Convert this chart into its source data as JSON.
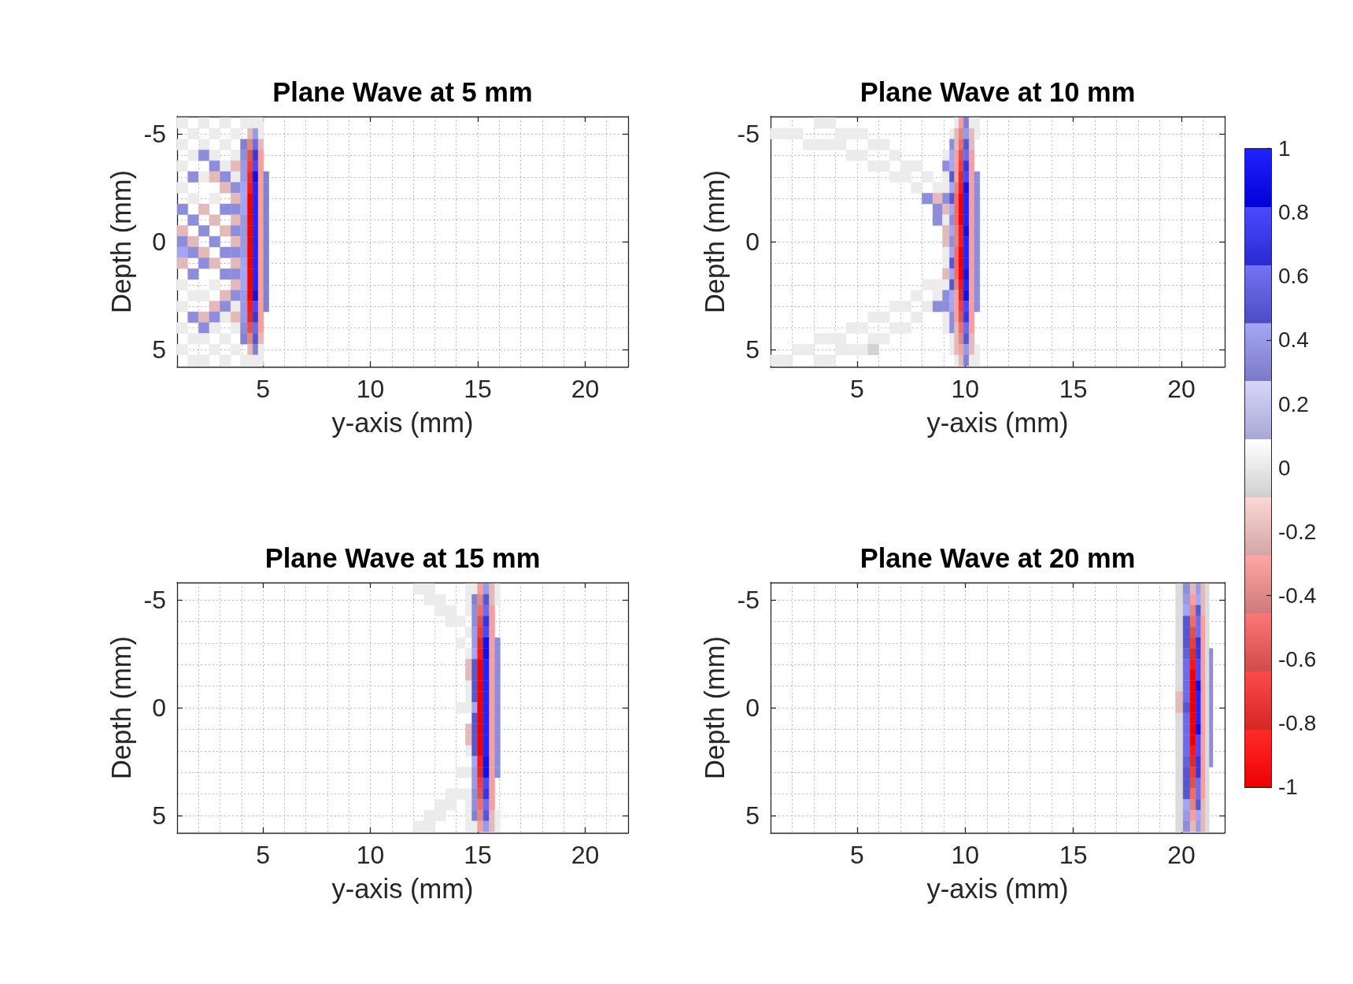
{
  "chart_data": [
    {
      "type": "heatmap",
      "title": "Plane Wave at 5 mm",
      "xlabel": "y-axis (mm)",
      "ylabel": "Depth (mm)",
      "x": [
        1.25,
        1.75,
        2.25,
        2.75,
        3.25,
        3.75,
        4.15,
        4.4,
        4.65,
        4.9,
        5.15
      ],
      "y": [
        -5.5,
        -5,
        -4.5,
        -4,
        -3.5,
        -3,
        -2.5,
        -2,
        -1.5,
        -1,
        -0.5,
        0,
        0.5,
        1,
        1.5,
        2,
        2.5,
        3,
        3.5,
        4,
        4.5,
        5,
        5.5
      ],
      "cells": [
        [
          0.02,
          null,
          0.02,
          null,
          0.02,
          null,
          0.02,
          0.02,
          0.02,
          0.02,
          null
        ],
        [
          null,
          0.02,
          null,
          0.02,
          null,
          0.02,
          null,
          -0.2,
          0.4,
          0.02,
          null
        ],
        [
          0.02,
          null,
          0.02,
          null,
          0.02,
          null,
          0.3,
          -0.4,
          0.6,
          -0.2,
          null
        ],
        [
          null,
          0.02,
          0.35,
          0.02,
          null,
          0.02,
          0.35,
          -0.6,
          0.7,
          -0.3,
          null
        ],
        [
          0.02,
          null,
          null,
          0.35,
          0.02,
          -0.2,
          0.4,
          -0.7,
          0.8,
          -0.3,
          null
        ],
        [
          null,
          0.35,
          0.02,
          -0.2,
          0.35,
          0.02,
          0.4,
          -0.8,
          0.9,
          -0.3,
          0.3
        ],
        [
          0.02,
          null,
          null,
          null,
          -0.2,
          0.35,
          0.45,
          -0.9,
          1,
          -0.3,
          0.3
        ],
        [
          null,
          0.02,
          null,
          0.02,
          null,
          -0.2,
          0.45,
          -1,
          1,
          -0.3,
          0.3
        ],
        [
          0.35,
          null,
          -0.2,
          null,
          0.35,
          0.35,
          0.45,
          -1,
          1,
          -0.3,
          0.3
        ],
        [
          null,
          0.35,
          null,
          -0.2,
          null,
          -0.2,
          0.4,
          -1,
          1,
          -0.3,
          0.3
        ],
        [
          -0.2,
          null,
          0.35,
          null,
          -0.2,
          0.35,
          0.4,
          -1,
          1,
          -0.3,
          0.3
        ],
        [
          0.35,
          -0.2,
          null,
          0.35,
          null,
          -0.2,
          0.4,
          -1,
          1,
          -0.3,
          0.3
        ],
        [
          0.45,
          0.35,
          -0.2,
          null,
          0.35,
          0.35,
          0.4,
          -1,
          1,
          -0.3,
          0.3
        ],
        [
          -0.2,
          null,
          0.35,
          -0.2,
          null,
          -0.2,
          0.45,
          -1,
          1,
          -0.3,
          0.3
        ],
        [
          null,
          0.35,
          null,
          null,
          0.35,
          0.35,
          0.45,
          -1,
          1,
          -0.3,
          0.3
        ],
        [
          0.02,
          null,
          null,
          0.02,
          null,
          -0.2,
          0.45,
          -1,
          1,
          -0.3,
          0.3
        ],
        [
          null,
          0.02,
          0.02,
          null,
          -0.2,
          0.35,
          0.4,
          -1,
          0.9,
          -0.3,
          0.3
        ],
        [
          0.02,
          null,
          null,
          -0.2,
          0.35,
          0.02,
          0.4,
          -0.9,
          0.8,
          -0.3,
          0.3
        ],
        [
          null,
          0.35,
          -0.2,
          0.35,
          0.02,
          -0.2,
          0.4,
          -0.8,
          0.7,
          -0.3,
          null
        ],
        [
          0.02,
          null,
          0.35,
          0.02,
          null,
          0.02,
          0.35,
          -0.6,
          0.6,
          -0.3,
          null
        ],
        [
          null,
          0.02,
          0.02,
          null,
          0.02,
          null,
          0.3,
          -0.4,
          0.5,
          -0.2,
          null
        ],
        [
          0.02,
          null,
          null,
          0.02,
          null,
          0.02,
          null,
          -0.2,
          0.3,
          0.02,
          null
        ],
        [
          null,
          0.02,
          0.02,
          null,
          0.02,
          null,
          0.02,
          0.02,
          0.02,
          0.02,
          null
        ]
      ],
      "xlim": [
        1,
        22
      ],
      "ylim": [
        5.8,
        -5.8
      ],
      "xticks": [
        {
          "value": 2,
          "label": null
        },
        {
          "value": 3,
          "label": null
        },
        {
          "value": 4,
          "label": null
        },
        5,
        {
          "value": 6,
          "label": null
        },
        {
          "value": 7,
          "label": null
        },
        {
          "value": 8,
          "label": null
        },
        {
          "value": 9,
          "label": null
        },
        10,
        {
          "value": 11,
          "label": null
        },
        {
          "value": 12,
          "label": null
        },
        {
          "value": 13,
          "label": null
        },
        {
          "value": 14,
          "label": null
        },
        15,
        {
          "value": 16,
          "label": null
        },
        {
          "value": 17,
          "label": null
        },
        {
          "value": 18,
          "label": null
        },
        {
          "value": 19,
          "label": null
        },
        20,
        {
          "value": 21,
          "label": null
        }
      ],
      "yticks": [
        -5,
        {
          "value": -4,
          "label": null
        },
        {
          "value": -3,
          "label": null
        },
        {
          "value": -2,
          "label": null
        },
        {
          "value": -1,
          "label": null
        },
        0,
        {
          "value": 1,
          "label": null
        },
        {
          "value": 2,
          "label": null
        },
        {
          "value": 3,
          "label": null
        },
        {
          "value": 4,
          "label": null
        },
        5
      ],
      "clim": [
        -1,
        1
      ],
      "cticks": [
        -1,
        -0.2,
        0.6
      ],
      "grid": true
    },
    {
      "type": "heatmap",
      "title": "Plane Wave at 10 mm",
      "xlabel": "y-axis (mm)",
      "ylabel": "Depth (mm)",
      "x": [
        1.25,
        1.75,
        2.25,
        2.75,
        3.25,
        3.75,
        4.25,
        4.75,
        5.25,
        5.75,
        6.25,
        6.75,
        7.25,
        7.75,
        8.25,
        8.75,
        9.15,
        9.4,
        9.6,
        9.8,
        10.05,
        10.3,
        10.55
      ],
      "y": [
        -5.5,
        -5,
        -4.5,
        -4,
        -3.5,
        -3,
        -2.5,
        -2,
        -1.5,
        -1,
        -0.5,
        0,
        0.5,
        1,
        1.5,
        2,
        2.5,
        3,
        3.5,
        4,
        4.5,
        5,
        5.5
      ],
      "cells": [
        [
          null,
          null,
          null,
          null,
          0.02,
          0.02,
          null,
          null,
          null,
          null,
          null,
          null,
          null,
          null,
          null,
          null,
          null,
          null,
          0.02,
          -0.3,
          0.3,
          0.02,
          0.02
        ],
        [
          0.02,
          0.02,
          0.02,
          null,
          null,
          null,
          0.02,
          0.02,
          0.02,
          null,
          null,
          null,
          null,
          null,
          null,
          null,
          null,
          0.02,
          -0.2,
          -0.4,
          0.4,
          -0.2,
          0.02
        ],
        [
          null,
          null,
          null,
          0.02,
          0.02,
          0.02,
          0.02,
          null,
          null,
          0.02,
          0.02,
          null,
          null,
          null,
          null,
          null,
          null,
          0.35,
          -0.2,
          -0.5,
          0.5,
          -0.2,
          null
        ],
        [
          null,
          null,
          null,
          null,
          null,
          null,
          null,
          0.02,
          0.02,
          null,
          null,
          0.02,
          null,
          null,
          null,
          null,
          0.02,
          0.45,
          -0.3,
          -0.6,
          0.6,
          -0.3,
          null
        ],
        [
          null,
          null,
          null,
          null,
          null,
          null,
          null,
          null,
          null,
          0.02,
          0.02,
          null,
          0.02,
          0.02,
          null,
          null,
          0.35,
          0.45,
          -0.3,
          -0.7,
          0.7,
          -0.3,
          null
        ],
        [
          null,
          null,
          null,
          null,
          null,
          null,
          null,
          null,
          null,
          null,
          null,
          0.02,
          0.02,
          null,
          0.02,
          null,
          0.02,
          0.5,
          -0.3,
          -0.8,
          0.8,
          -0.3,
          0.35
        ],
        [
          null,
          null,
          null,
          null,
          null,
          null,
          null,
          null,
          null,
          null,
          null,
          null,
          null,
          0.02,
          null,
          0.02,
          0.02,
          0.45,
          -0.4,
          -0.9,
          0.9,
          -0.3,
          0.35
        ],
        [
          null,
          null,
          null,
          null,
          null,
          null,
          null,
          null,
          null,
          null,
          null,
          null,
          null,
          null,
          0.35,
          -0.2,
          0.35,
          0.5,
          -0.5,
          -1,
          1,
          -0.3,
          0.35
        ],
        [
          null,
          null,
          null,
          null,
          null,
          null,
          null,
          null,
          null,
          null,
          null,
          null,
          null,
          null,
          null,
          0.35,
          -0.2,
          0.45,
          -0.5,
          -1,
          1,
          -0.3,
          0.35
        ],
        [
          null,
          null,
          null,
          null,
          null,
          null,
          null,
          null,
          null,
          null,
          null,
          null,
          null,
          null,
          null,
          0.35,
          0.02,
          0.35,
          -0.5,
          -1,
          1,
          -0.3,
          0.35
        ],
        [
          null,
          null,
          null,
          null,
          null,
          null,
          null,
          null,
          null,
          null,
          null,
          null,
          null,
          null,
          null,
          null,
          -0.2,
          0.45,
          -0.4,
          -0.9,
          0.9,
          -0.3,
          0.35
        ],
        [
          null,
          null,
          null,
          null,
          null,
          null,
          null,
          null,
          null,
          null,
          null,
          null,
          null,
          null,
          null,
          null,
          -0.2,
          0.35,
          -0.4,
          -0.9,
          1,
          -0.3,
          0.35
        ],
        [
          null,
          null,
          null,
          null,
          null,
          null,
          null,
          null,
          null,
          null,
          null,
          null,
          null,
          null,
          null,
          null,
          0.02,
          0.45,
          -0.5,
          -1,
          1,
          -0.3,
          0.35
        ],
        [
          null,
          null,
          null,
          null,
          null,
          null,
          null,
          null,
          null,
          null,
          null,
          null,
          null,
          null,
          null,
          null,
          0.02,
          0.5,
          -0.5,
          -1,
          1,
          -0.3,
          0.35
        ],
        [
          null,
          null,
          null,
          null,
          null,
          null,
          null,
          null,
          null,
          null,
          null,
          null,
          null,
          null,
          null,
          null,
          -0.2,
          0.45,
          -0.5,
          -1,
          0.9,
          -0.3,
          0.35
        ],
        [
          null,
          null,
          null,
          null,
          null,
          null,
          null,
          null,
          null,
          null,
          null,
          null,
          null,
          null,
          0.02,
          0.02,
          0.02,
          0.5,
          -0.4,
          -0.9,
          1,
          -0.3,
          0.35
        ],
        [
          null,
          null,
          null,
          null,
          null,
          null,
          null,
          null,
          null,
          null,
          null,
          null,
          null,
          0.02,
          null,
          0.02,
          0.35,
          0.45,
          -0.3,
          -0.8,
          0.9,
          -0.3,
          0.35
        ],
        [
          null,
          null,
          null,
          null,
          null,
          null,
          null,
          null,
          null,
          null,
          null,
          0.02,
          0.02,
          null,
          0.02,
          0.35,
          0.35,
          0.45,
          -0.3,
          -0.7,
          0.8,
          -0.3,
          0.35
        ],
        [
          null,
          null,
          null,
          null,
          null,
          null,
          null,
          null,
          null,
          0.02,
          0.02,
          null,
          null,
          0.02,
          null,
          null,
          0.02,
          0.35,
          -0.3,
          -0.6,
          0.7,
          -0.3,
          null
        ],
        [
          null,
          null,
          null,
          null,
          null,
          null,
          null,
          0.02,
          0.02,
          null,
          null,
          0.02,
          0.02,
          null,
          null,
          null,
          0.02,
          0.35,
          -0.2,
          -0.5,
          0.6,
          -0.3,
          null
        ],
        [
          null,
          null,
          null,
          null,
          0.02,
          0.02,
          0.02,
          null,
          null,
          0.02,
          0.02,
          null,
          null,
          null,
          null,
          null,
          null,
          0.02,
          -0.2,
          -0.4,
          0.5,
          -0.2,
          null
        ],
        [
          null,
          null,
          0.02,
          0.02,
          null,
          null,
          0.02,
          0.02,
          0.02,
          -0.08,
          null,
          null,
          null,
          null,
          null,
          null,
          null,
          0.02,
          -0.2,
          -0.3,
          0.4,
          -0.2,
          0.02
        ],
        [
          0.02,
          0.02,
          null,
          null,
          0.02,
          0.02,
          null,
          null,
          null,
          null,
          null,
          null,
          null,
          null,
          null,
          null,
          null,
          null,
          0.02,
          -0.2,
          0.3,
          0.02,
          0.02
        ]
      ],
      "xlim": [
        1,
        22
      ],
      "ylim": [
        5.8,
        -5.8
      ],
      "xticks": [
        {
          "value": 2,
          "label": null
        },
        {
          "value": 3,
          "label": null
        },
        {
          "value": 4,
          "label": null
        },
        5,
        {
          "value": 6,
          "label": null
        },
        {
          "value": 7,
          "label": null
        },
        {
          "value": 8,
          "label": null
        },
        {
          "value": 9,
          "label": null
        },
        10,
        {
          "value": 11,
          "label": null
        },
        {
          "value": 12,
          "label": null
        },
        {
          "value": 13,
          "label": null
        },
        {
          "value": 14,
          "label": null
        },
        15,
        {
          "value": 16,
          "label": null
        },
        {
          "value": 17,
          "label": null
        },
        {
          "value": 18,
          "label": null
        },
        {
          "value": 19,
          "label": null
        },
        20,
        {
          "value": 21,
          "label": null
        }
      ],
      "yticks": [
        -5,
        {
          "value": -4,
          "label": null
        },
        {
          "value": -3,
          "label": null
        },
        {
          "value": -2,
          "label": null
        },
        {
          "value": -1,
          "label": null
        },
        0,
        {
          "value": 1,
          "label": null
        },
        {
          "value": 2,
          "label": null
        },
        {
          "value": 3,
          "label": null
        },
        {
          "value": 4,
          "label": null
        },
        5
      ],
      "clim": [
        -1,
        1
      ],
      "cticks": [
        -0.8,
        0,
        0.8
      ],
      "grid": true
    },
    {
      "type": "heatmap",
      "title": "Plane Wave at 15 mm",
      "xlabel": "y-axis (mm)",
      "ylabel": "Depth (mm)",
      "x": [
        12.25,
        12.75,
        13.25,
        13.75,
        14.25,
        14.6,
        14.85,
        15.12,
        15.4,
        15.67,
        15.92
      ],
      "y": [
        -5.5,
        -5,
        -4.5,
        -4,
        -3.5,
        -3,
        -2.5,
        -2,
        -1.5,
        -1,
        -0.5,
        0,
        0.5,
        1,
        1.5,
        2,
        2.5,
        3,
        3.5,
        4,
        4.5,
        5,
        5.5
      ],
      "cells": [
        [
          0.02,
          0.02,
          null,
          null,
          null,
          0.02,
          0.02,
          -0.3,
          0.4,
          -0.2,
          0.02
        ],
        [
          null,
          0.02,
          0.02,
          null,
          null,
          0.02,
          0.3,
          -0.4,
          0.5,
          -0.2,
          0.02
        ],
        [
          null,
          null,
          0.02,
          0.02,
          null,
          0.02,
          0.35,
          -0.5,
          0.6,
          -0.3,
          null
        ],
        [
          null,
          null,
          null,
          0.02,
          0.02,
          null,
          0.35,
          -0.6,
          0.7,
          -0.3,
          null
        ],
        [
          null,
          null,
          null,
          null,
          null,
          0.02,
          0.4,
          -0.7,
          0.8,
          -0.3,
          null
        ],
        [
          null,
          null,
          null,
          null,
          0.02,
          null,
          0.4,
          -0.8,
          0.9,
          -0.3,
          0.35
        ],
        [
          null,
          null,
          null,
          null,
          null,
          0.02,
          0.45,
          -0.9,
          0.9,
          -0.3,
          0.35
        ],
        [
          null,
          null,
          null,
          null,
          null,
          -0.2,
          0.5,
          -1,
          1,
          -0.3,
          0.35
        ],
        [
          null,
          null,
          null,
          null,
          null,
          -0.2,
          0.5,
          -1,
          1,
          -0.3,
          0.35
        ],
        [
          null,
          null,
          null,
          null,
          null,
          0.02,
          0.5,
          -1,
          1,
          -0.3,
          0.35
        ],
        [
          null,
          null,
          null,
          null,
          null,
          0.02,
          0.5,
          -1,
          1,
          -0.3,
          0.35
        ],
        [
          null,
          null,
          null,
          null,
          0.02,
          0.02,
          0.45,
          -1,
          1,
          -0.3,
          0.35
        ],
        [
          null,
          null,
          null,
          null,
          null,
          null,
          0.5,
          -1,
          1,
          -0.3,
          0.35
        ],
        [
          null,
          null,
          null,
          null,
          null,
          -0.2,
          0.5,
          -1,
          1,
          -0.3,
          0.35
        ],
        [
          null,
          null,
          null,
          null,
          null,
          -0.2,
          0.5,
          -1,
          1,
          -0.3,
          0.35
        ],
        [
          null,
          null,
          null,
          null,
          null,
          0.02,
          0.5,
          -1,
          1,
          -0.3,
          0.35
        ],
        [
          null,
          null,
          null,
          null,
          null,
          null,
          0.45,
          -0.9,
          0.9,
          -0.3,
          0.35
        ],
        [
          null,
          null,
          null,
          null,
          0.02,
          0.02,
          0.4,
          -0.8,
          0.9,
          -0.3,
          0.35
        ],
        [
          null,
          null,
          null,
          null,
          null,
          null,
          0.4,
          -0.7,
          0.8,
          -0.3,
          null
        ],
        [
          null,
          null,
          null,
          0.02,
          0.02,
          0.02,
          0.35,
          -0.6,
          0.7,
          -0.3,
          null
        ],
        [
          null,
          null,
          0.02,
          0.02,
          null,
          0.02,
          0.35,
          -0.5,
          0.6,
          -0.3,
          null
        ],
        [
          null,
          0.02,
          0.02,
          null,
          null,
          0.02,
          0.3,
          -0.4,
          0.5,
          -0.2,
          0.02
        ],
        [
          0.02,
          0.02,
          null,
          null,
          null,
          0.02,
          0.02,
          -0.3,
          0.4,
          -0.2,
          0.02
        ]
      ],
      "xlim": [
        1,
        22
      ],
      "ylim": [
        5.8,
        -5.8
      ],
      "xticks": [
        {
          "value": 2,
          "label": null
        },
        {
          "value": 3,
          "label": null
        },
        {
          "value": 4,
          "label": null
        },
        5,
        {
          "value": 6,
          "label": null
        },
        {
          "value": 7,
          "label": null
        },
        {
          "value": 8,
          "label": null
        },
        {
          "value": 9,
          "label": null
        },
        10,
        {
          "value": 11,
          "label": null
        },
        {
          "value": 12,
          "label": null
        },
        {
          "value": 13,
          "label": null
        },
        {
          "value": 14,
          "label": null
        },
        15,
        {
          "value": 16,
          "label": null
        },
        {
          "value": 17,
          "label": null
        },
        {
          "value": 18,
          "label": null
        },
        {
          "value": 19,
          "label": null
        },
        20,
        {
          "value": 21,
          "label": null
        }
      ],
      "yticks": [
        -5,
        {
          "value": -4,
          "label": null
        },
        {
          "value": -3,
          "label": null
        },
        {
          "value": -2,
          "label": null
        },
        {
          "value": -1,
          "label": null
        },
        0,
        {
          "value": 1,
          "label": null
        },
        {
          "value": 2,
          "label": null
        },
        {
          "value": 3,
          "label": null
        },
        {
          "value": 4,
          "label": null
        },
        5
      ],
      "clim": [
        -1,
        1
      ],
      "cticks": [
        -0.6,
        0.2,
        1
      ],
      "grid": true
    },
    {
      "type": "heatmap",
      "title": "Plane Wave at 20 mm",
      "xlabel": "y-axis (mm)",
      "ylabel": "Depth (mm)",
      "x": [
        19.9,
        20.25,
        20.55,
        20.78,
        21.02,
        21.2,
        21.37
      ],
      "y": [
        -5.5,
        -5,
        -4.5,
        -4,
        -3.5,
        -3,
        -2.5,
        -2,
        -1.5,
        -1,
        -0.5,
        0,
        0.5,
        1,
        1.5,
        2,
        2.5,
        3,
        3.5,
        4,
        4.5,
        5,
        5.5
      ],
      "cells": [
        [
          -0.04,
          0.35,
          -0.2,
          0.4,
          -0.2,
          -0.04,
          null
        ],
        [
          -0.04,
          0.4,
          -0.3,
          0.45,
          -0.2,
          -0.04,
          null
        ],
        [
          -0.04,
          0.45,
          -0.4,
          0.5,
          -0.2,
          -0.04,
          null
        ],
        [
          -0.04,
          0.5,
          -0.5,
          0.6,
          -0.3,
          -0.04,
          null
        ],
        [
          -0.04,
          0.5,
          -0.6,
          0.6,
          -0.3,
          -0.04,
          null
        ],
        [
          -0.04,
          0.5,
          -0.7,
          0.7,
          -0.3,
          -0.04,
          null
        ],
        [
          -0.04,
          0.55,
          -0.8,
          0.7,
          -0.3,
          -0.04,
          0.35
        ],
        [
          -0.04,
          0.6,
          -0.9,
          0.8,
          -0.3,
          -0.04,
          0.35
        ],
        [
          -0.04,
          0.6,
          -1,
          0.8,
          -0.3,
          -0.04,
          0.35
        ],
        [
          -0.04,
          0.6,
          -1,
          0.9,
          -0.3,
          -0.04,
          0.35
        ],
        [
          -0.2,
          0.6,
          -1,
          1,
          -0.3,
          -0.04,
          0.35
        ],
        [
          -0.2,
          0.5,
          -1,
          1,
          -0.3,
          -0.04,
          0.35
        ],
        [
          -0.04,
          0.6,
          -1,
          1,
          -0.3,
          -0.04,
          0.35
        ],
        [
          -0.04,
          0.6,
          -1,
          0.9,
          -0.3,
          -0.04,
          0.35
        ],
        [
          -0.04,
          0.6,
          -1,
          0.8,
          -0.3,
          -0.04,
          0.35
        ],
        [
          -0.04,
          0.6,
          -0.9,
          0.8,
          -0.3,
          -0.04,
          0.35
        ],
        [
          -0.04,
          0.55,
          -0.8,
          0.7,
          -0.3,
          -0.04,
          0.35
        ],
        [
          -0.04,
          0.5,
          -0.7,
          0.7,
          -0.3,
          -0.04,
          null
        ],
        [
          -0.04,
          0.5,
          -0.6,
          0.6,
          -0.3,
          -0.04,
          null
        ],
        [
          -0.04,
          0.5,
          -0.5,
          0.6,
          -0.3,
          -0.04,
          null
        ],
        [
          -0.04,
          0.45,
          -0.4,
          0.5,
          -0.2,
          -0.04,
          null
        ],
        [
          -0.04,
          0.4,
          -0.3,
          0.45,
          -0.2,
          -0.04,
          null
        ],
        [
          -0.04,
          0.35,
          -0.2,
          0.4,
          -0.2,
          -0.04,
          null
        ]
      ],
      "xlim": [
        1,
        22
      ],
      "ylim": [
        5.8,
        -5.8
      ],
      "xticks": [
        {
          "value": 2,
          "label": null
        },
        {
          "value": 3,
          "label": null
        },
        {
          "value": 4,
          "label": null
        },
        5,
        {
          "value": 6,
          "label": null
        },
        {
          "value": 7,
          "label": null
        },
        {
          "value": 8,
          "label": null
        },
        {
          "value": 9,
          "label": null
        },
        10,
        {
          "value": 11,
          "label": null
        },
        {
          "value": 12,
          "label": null
        },
        {
          "value": 13,
          "label": null
        },
        {
          "value": 14,
          "label": null
        },
        15,
        {
          "value": 16,
          "label": null
        },
        {
          "value": 17,
          "label": null
        },
        {
          "value": 18,
          "label": null
        },
        {
          "value": 19,
          "label": null
        },
        20,
        {
          "value": 21,
          "label": null
        }
      ],
      "yticks": [
        -5,
        {
          "value": -4,
          "label": null
        },
        {
          "value": -3,
          "label": null
        },
        {
          "value": -2,
          "label": null
        },
        {
          "value": -1,
          "label": null
        },
        0,
        {
          "value": 1,
          "label": null
        },
        {
          "value": 2,
          "label": null
        },
        {
          "value": 3,
          "label": null
        },
        {
          "value": 4,
          "label": null
        },
        5
      ],
      "clim": [
        -1,
        1
      ],
      "cticks": [
        -0.4,
        0.4
      ],
      "grid": true
    }
  ]
}
